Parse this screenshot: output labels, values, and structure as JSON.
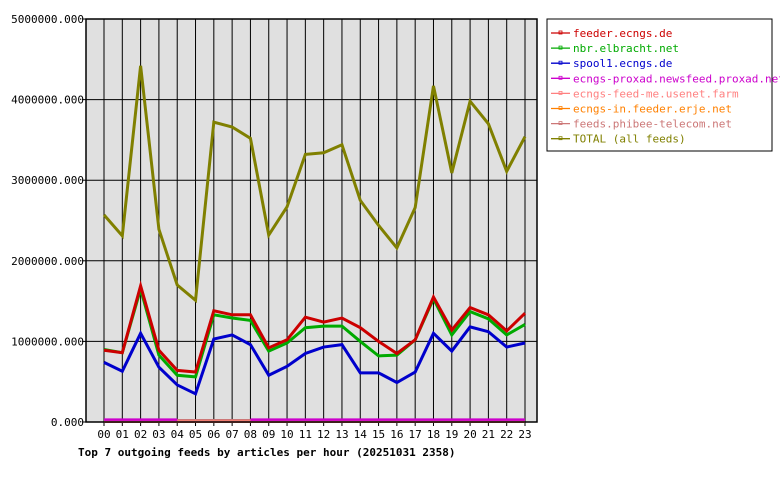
{
  "chart_data": {
    "type": "line",
    "title": "Top 7 outgoing feeds by articles per hour (20251031 2358)",
    "xlabel": "",
    "ylabel": "",
    "categories": [
      "00",
      "01",
      "02",
      "03",
      "04",
      "05",
      "06",
      "07",
      "08",
      "09",
      "10",
      "11",
      "12",
      "13",
      "14",
      "15",
      "16",
      "17",
      "18",
      "19",
      "20",
      "21",
      "22",
      "23"
    ],
    "ylim": [
      0,
      5000000
    ],
    "yticks": [
      "0.000",
      "1000000.000",
      "2000000.000",
      "3000000.000",
      "4000000.000",
      "5000000.000"
    ],
    "grid": true,
    "legend_position": "right",
    "series": [
      {
        "name": "feeder.ecngs.de",
        "color": "#cc0000",
        "values": [
          890000,
          860000,
          1690000,
          890000,
          640000,
          620000,
          1380000,
          1330000,
          1330000,
          920000,
          1020000,
          1300000,
          1240000,
          1290000,
          1170000,
          1000000,
          850000,
          1020000,
          1550000,
          1140000,
          1420000,
          1330000,
          1130000,
          1350000
        ]
      },
      {
        "name": "nbr.elbracht.net",
        "color": "#00aa00",
        "values": [
          900000,
          860000,
          1650000,
          830000,
          580000,
          560000,
          1330000,
          1290000,
          1260000,
          880000,
          980000,
          1170000,
          1190000,
          1190000,
          1000000,
          820000,
          830000,
          1020000,
          1530000,
          1080000,
          1370000,
          1280000,
          1080000,
          1210000
        ]
      },
      {
        "name": "spool1.ecngs.de",
        "color": "#0000cc",
        "values": [
          740000,
          630000,
          1100000,
          680000,
          460000,
          350000,
          1030000,
          1080000,
          960000,
          580000,
          690000,
          850000,
          930000,
          960000,
          610000,
          610000,
          490000,
          620000,
          1100000,
          880000,
          1180000,
          1120000,
          930000,
          980000
        ]
      },
      {
        "name": "ecngs-proxad.newsfeed.proxad.net",
        "color": "#cc00cc",
        "values": [
          30000,
          30000,
          30000,
          30000,
          30000,
          null,
          null,
          null,
          30000,
          30000,
          30000,
          30000,
          30000,
          30000,
          30000,
          30000,
          30000,
          30000,
          30000,
          30000,
          30000,
          30000,
          30000,
          30000
        ]
      },
      {
        "name": "ecngs-feed-me.usenet.farm",
        "color": "#ff8080",
        "values": [
          5000,
          5000,
          5000,
          5000,
          5000,
          5000,
          5000,
          5000,
          5000,
          5000,
          5000,
          5000,
          5000,
          5000,
          5000,
          5000,
          5000,
          5000,
          5000,
          5000,
          5000,
          5000,
          5000,
          5000
        ]
      },
      {
        "name": "ecngs-in.feeder.erje.net",
        "color": "#ff8000",
        "values": [
          5000,
          5000,
          5000,
          5000,
          5000,
          5000,
          5000,
          5000,
          5000,
          5000,
          5000,
          5000,
          5000,
          5000,
          5000,
          5000,
          5000,
          5000,
          5000,
          5000,
          5000,
          5000,
          5000,
          5000
        ]
      },
      {
        "name": "feeds.phibee-telecom.net",
        "color": "#cc7777",
        "values": [
          12000,
          12000,
          12000,
          12000,
          12000,
          12000,
          12000,
          12000,
          12000,
          12000,
          12000,
          12000,
          12000,
          12000,
          12000,
          12000,
          12000,
          12000,
          12000,
          12000,
          12000,
          12000,
          12000,
          12000
        ]
      },
      {
        "name": "TOTAL (all feeds)",
        "color": "#808000",
        "values": [
          2570000,
          2310000,
          4420000,
          2390000,
          1700000,
          1510000,
          3720000,
          3660000,
          3520000,
          2320000,
          2670000,
          3320000,
          3340000,
          3440000,
          2750000,
          2440000,
          2160000,
          2660000,
          4170000,
          3090000,
          3980000,
          3700000,
          3110000,
          3540000
        ]
      }
    ]
  }
}
